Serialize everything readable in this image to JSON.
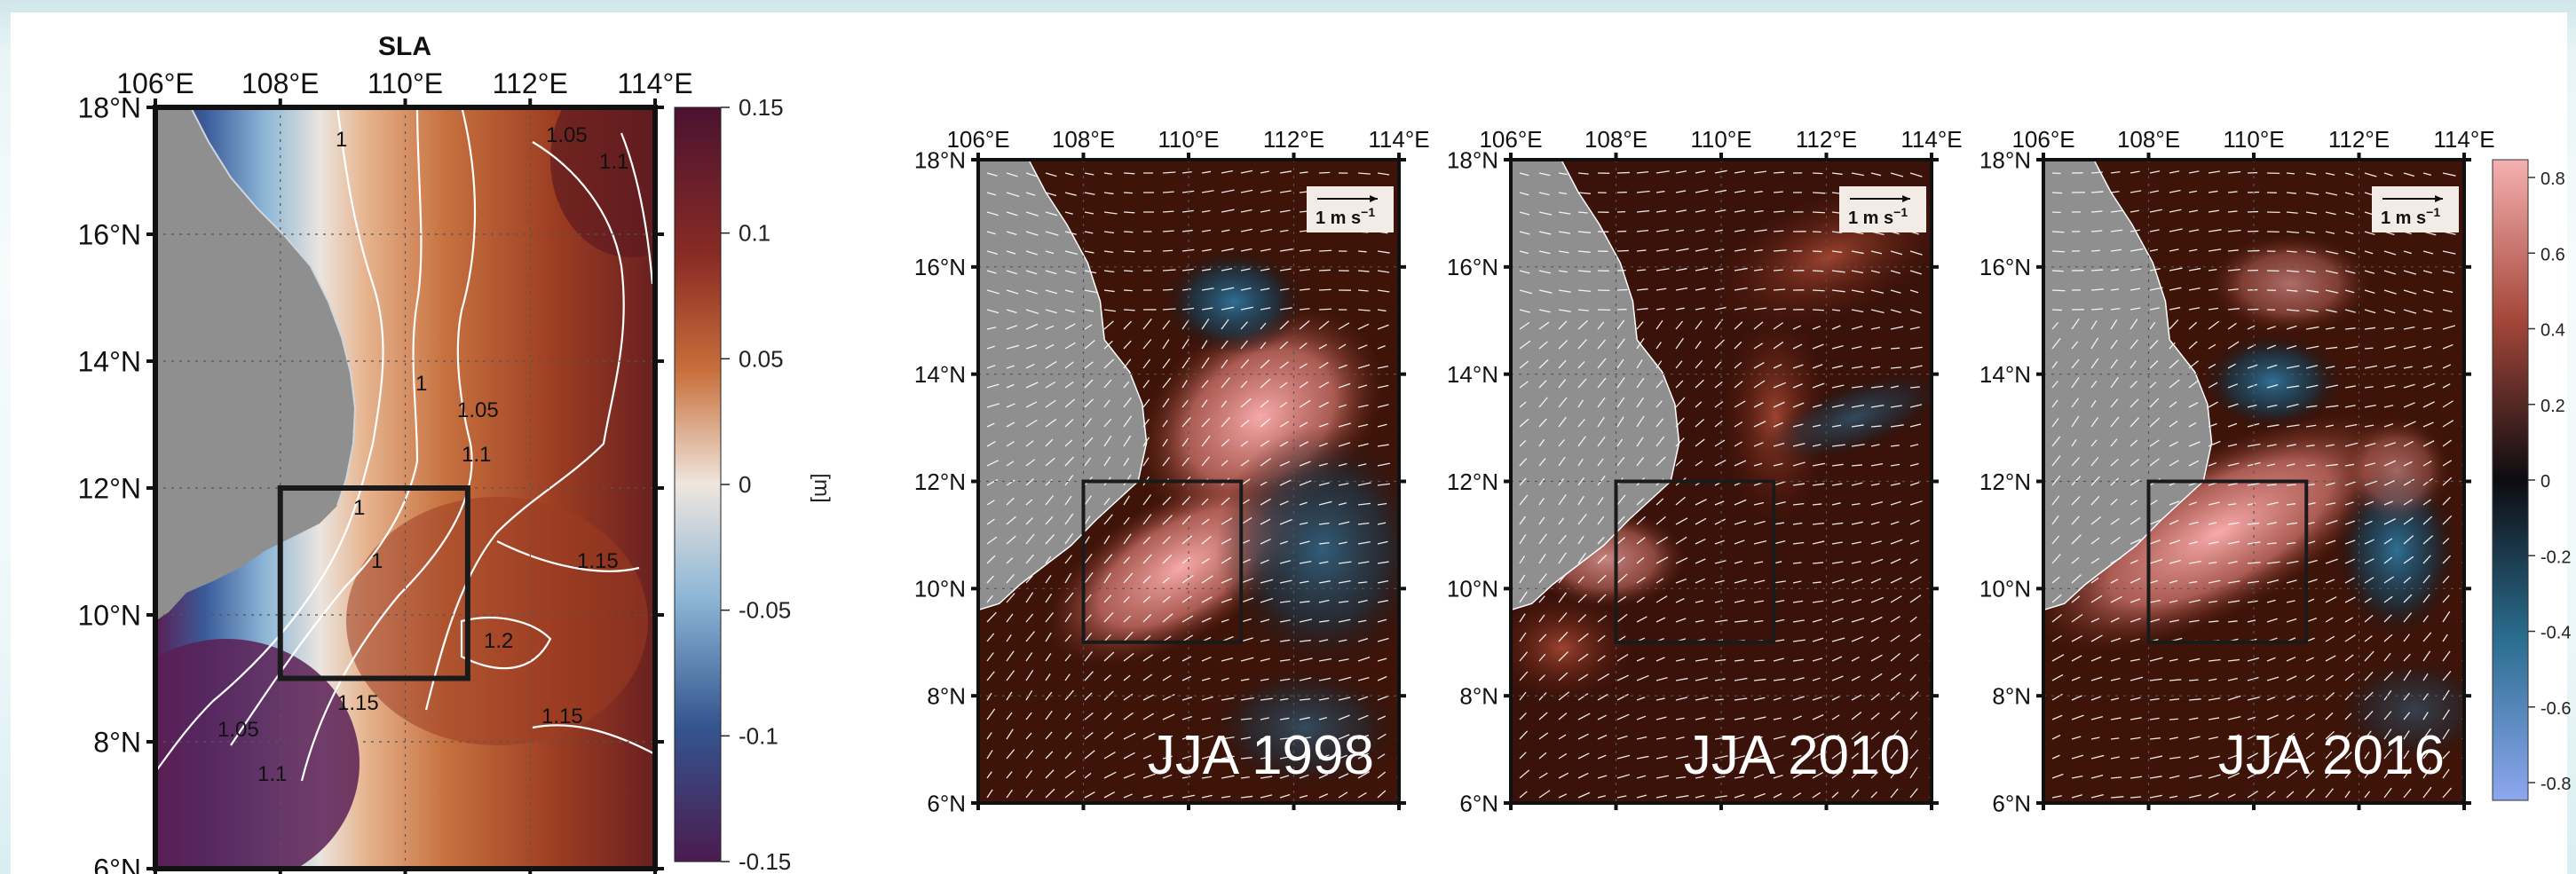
{
  "figure": {
    "colors": {
      "land": "#8f8f8f",
      "sla_ramp": [
        "#5a1f55",
        "#3a5b9a",
        "#8db6d6",
        "#ebe5df",
        "#e6b48f",
        "#c7713f",
        "#9c3d22",
        "#5e1a20"
      ],
      "anom_ramp": [
        "#8fa8f0",
        "#2f6f95",
        "#0e1a22",
        "#3a1208",
        "#8a3a26",
        "#f4a5a8"
      ],
      "box": "#1a1a1a",
      "contour": "#ffffff"
    }
  },
  "chart_data": [
    {
      "type": "heatmap",
      "title": "SLA",
      "x_ticks": [
        "106°E",
        "108°E",
        "110°E",
        "112°E",
        "114°E"
      ],
      "x_range": [
        106,
        114
      ],
      "y_ticks": [
        "6°N",
        "8°N",
        "10°N",
        "12°N",
        "14°N",
        "16°N",
        "18°N"
      ],
      "y_range": [
        6,
        18
      ],
      "colorbar": {
        "label": "[m]",
        "range": [
          -0.15,
          0.15
        ],
        "ticks": [
          "0.15",
          "0.1",
          "0.05",
          "0",
          "-0.05",
          "-0.1",
          "-0.15"
        ]
      },
      "contour_labels": [
        "1",
        "1",
        "1",
        "1",
        "1.05",
        "1.05",
        "1.05",
        "1.1",
        "1.1",
        "1.1",
        "1.15",
        "1.15",
        "1.15",
        "1.2"
      ],
      "box_region": {
        "lon": [
          108,
          111
        ],
        "lat": [
          9,
          12
        ]
      }
    },
    {
      "type": "heatmap",
      "panel_label": "JJA 1998",
      "x_ticks": [
        "106°E",
        "108°E",
        "110°E",
        "112°E",
        "114°E"
      ],
      "x_range": [
        106,
        114
      ],
      "y_ticks": [
        "6°N",
        "8°N",
        "10°N",
        "12°N",
        "14°N",
        "16°N",
        "18°N"
      ],
      "y_range": [
        6,
        18
      ],
      "vector_scale_label": "1 m s",
      "vector_scale_exp": "−1",
      "box_region": {
        "lon": [
          108,
          111
        ],
        "lat": [
          9,
          12
        ]
      }
    },
    {
      "type": "heatmap",
      "panel_label": "JJA 2010",
      "x_ticks": [
        "106°E",
        "108°E",
        "110°E",
        "112°E",
        "114°E"
      ],
      "x_range": [
        106,
        114
      ],
      "y_ticks": [
        "6°N",
        "8°N",
        "10°N",
        "12°N",
        "14°N",
        "16°N",
        "18°N"
      ],
      "y_range": [
        6,
        18
      ],
      "vector_scale_label": "1 m s",
      "vector_scale_exp": "−1",
      "box_region": {
        "lon": [
          108,
          111
        ],
        "lat": [
          9,
          12
        ]
      }
    },
    {
      "type": "heatmap",
      "panel_label": "JJA 2016",
      "x_ticks": [
        "106°E",
        "108°E",
        "110°E",
        "112°E",
        "114°E"
      ],
      "x_range": [
        106,
        114
      ],
      "y_ticks": [
        "6°N",
        "8°N",
        "10°N",
        "12°N",
        "14°N",
        "16°N",
        "18°N"
      ],
      "y_range": [
        6,
        18
      ],
      "vector_scale_label": "1 m s",
      "vector_scale_exp": "−1",
      "box_region": {
        "lon": [
          108,
          111
        ],
        "lat": [
          9,
          12
        ]
      },
      "colorbar": {
        "range": [
          -0.8,
          0.8
        ],
        "ticks": [
          "0.8",
          "0.6",
          "0.4",
          "0.2",
          "0",
          "-0.2",
          "-0.4",
          "-0.6",
          "-0.8"
        ]
      }
    }
  ]
}
